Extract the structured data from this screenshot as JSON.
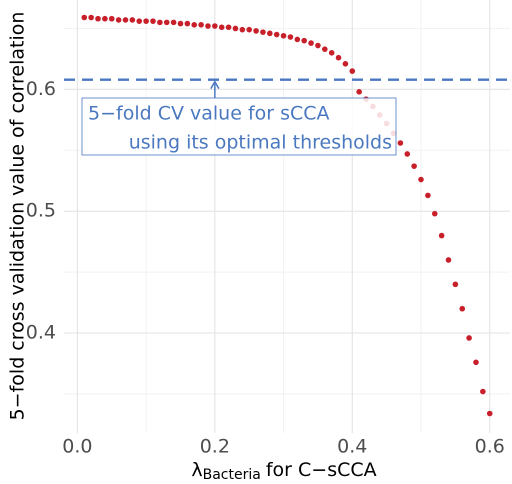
{
  "chart_data": {
    "type": "scatter",
    "xlabel": {
      "symbol": "λ",
      "subscript": "Bacteria",
      "text": "for C−sCCA"
    },
    "ylabel": "5−fold cross validation value of correlation",
    "x": [
      0.01,
      0.02,
      0.03,
      0.04,
      0.05,
      0.06,
      0.07,
      0.08,
      0.09,
      0.1,
      0.11,
      0.12,
      0.13,
      0.14,
      0.15,
      0.16,
      0.17,
      0.18,
      0.19,
      0.2,
      0.21,
      0.22,
      0.23,
      0.24,
      0.25,
      0.26,
      0.27,
      0.28,
      0.29,
      0.3,
      0.31,
      0.32,
      0.33,
      0.34,
      0.35,
      0.36,
      0.37,
      0.38,
      0.39,
      0.4,
      0.41,
      0.42,
      0.43,
      0.44,
      0.45,
      0.46,
      0.47,
      0.48,
      0.49,
      0.5,
      0.51,
      0.52,
      0.53,
      0.54,
      0.55,
      0.56,
      0.57,
      0.58,
      0.59,
      0.6
    ],
    "values": [
      0.659,
      0.659,
      0.658,
      0.658,
      0.658,
      0.657,
      0.657,
      0.657,
      0.656,
      0.656,
      0.656,
      0.655,
      0.655,
      0.655,
      0.654,
      0.654,
      0.653,
      0.653,
      0.652,
      0.652,
      0.651,
      0.651,
      0.65,
      0.649,
      0.649,
      0.648,
      0.647,
      0.646,
      0.645,
      0.644,
      0.643,
      0.641,
      0.64,
      0.638,
      0.636,
      0.633,
      0.63,
      0.626,
      0.621,
      0.615,
      0.598,
      0.592,
      0.586,
      0.579,
      0.572,
      0.564,
      0.556,
      0.547,
      0.537,
      0.526,
      0.513,
      0.498,
      0.48,
      0.46,
      0.44,
      0.42,
      0.396,
      0.376,
      0.352,
      0.334
    ],
    "color": "#c8202a",
    "xlim": [
      -0.0195,
      0.6295
    ],
    "ylim": [
      0.318,
      0.675
    ],
    "xticks": [
      {
        "value": 0,
        "label": "0.0"
      },
      0.2,
      0.4,
      0.6
    ],
    "yticks": [
      0.4,
      0.5,
      0.6
    ],
    "minor_xticks": [
      0.1,
      0.3,
      0.5
    ],
    "minor_yticks": [
      0.35,
      0.45,
      0.55,
      0.65
    ],
    "grid": true,
    "reference_line": {
      "value": 0.608,
      "color": "#4a78c0",
      "style": "dashed"
    },
    "annotation": {
      "lines": [
        "5−fold CV value for sCCA",
        "using its optimal thresholds"
      ],
      "x": 0.2,
      "color": "#4a78c0"
    }
  }
}
